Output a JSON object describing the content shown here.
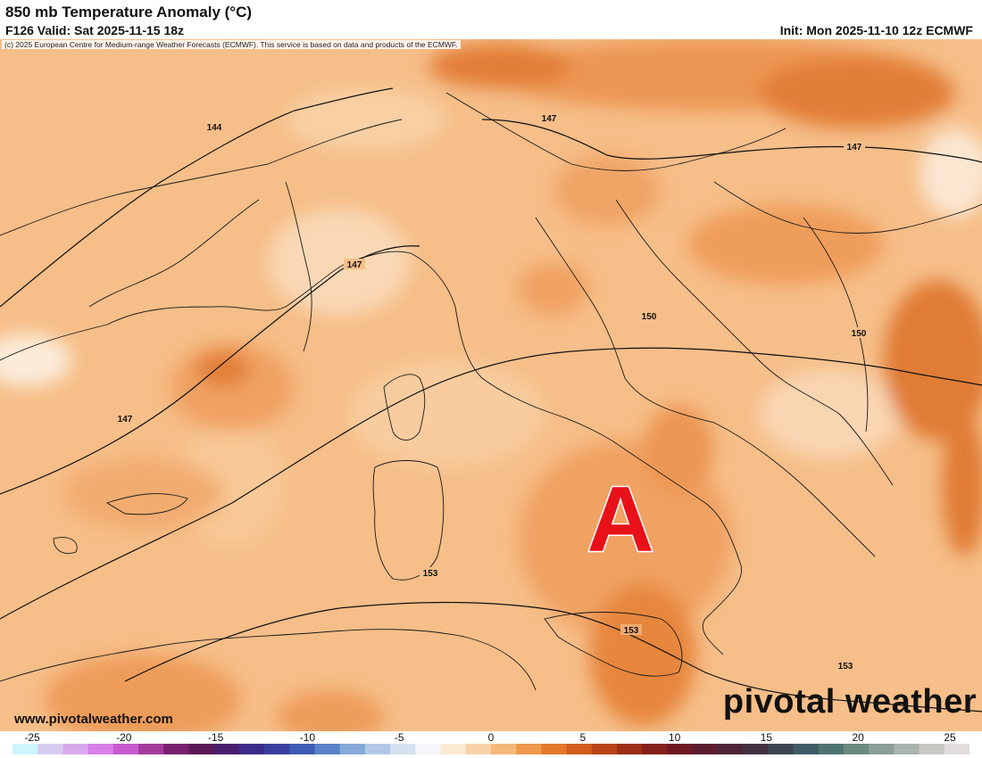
{
  "header": {
    "title": "850 mb Temperature Anomaly (°C)",
    "valid": "F126 Valid: Sat 2025-11-15 18z",
    "init": "Init: Mon 2025-11-10 12z ECMWF",
    "copyright": "(c) 2025 European Centre for Medium-range Weather Forecasts (ECMWF). This service is based on data and products of the ECMWF."
  },
  "map": {
    "region": "Western Mediterranean / Italy",
    "contour_labels": [
      "144",
      "147",
      "147",
      "147",
      "147",
      "150",
      "150",
      "153",
      "153",
      "153"
    ],
    "marker_letter": "A",
    "marker_color": "#e8111a"
  },
  "footer": {
    "website": "www.pivotalweather.com",
    "brand": "pivotal weather"
  },
  "colorbar": {
    "ticks": [
      "-25",
      "-20",
      "-15",
      "-10",
      "-5",
      "0",
      "5",
      "10",
      "15",
      "20",
      "25"
    ],
    "colors": [
      "#cdf5fb",
      "#d7cbf0",
      "#d9a9ee",
      "#d77fe6",
      "#c95bd0",
      "#a43b9b",
      "#7a2070",
      "#5a1a58",
      "#4a1e6e",
      "#3d2c8c",
      "#3a3f9e",
      "#3e5cb2",
      "#5a82c6",
      "#86a8d8",
      "#b3c8e6",
      "#d6e1ef",
      "#f4f6f9",
      "#fbead2",
      "#f9d3a8",
      "#f6b97a",
      "#f0994e",
      "#e4782c",
      "#d25d1c",
      "#b84516",
      "#9c2f16",
      "#84211a",
      "#6e1a24",
      "#5c1d30",
      "#4e2538",
      "#423040",
      "#3d4452",
      "#3f5b64",
      "#4f7470",
      "#6b8a80",
      "#8a9f96",
      "#a9b3ad",
      "#c8c8c4",
      "#e2dcdc"
    ]
  }
}
